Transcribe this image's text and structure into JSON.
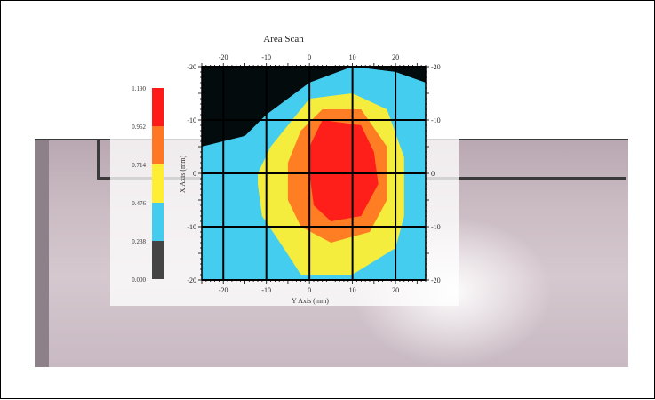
{
  "chart_data": {
    "type": "heatmap",
    "title": "Area Scan",
    "xlabel": "Y Axis (mm)",
    "ylabel": "X Axis (mm)",
    "x_ticks": [
      "-20",
      "-10",
      "0",
      "10",
      "20"
    ],
    "y_ticks": [
      "-20",
      "-10",
      "0",
      "-10",
      "-20"
    ],
    "xlim": [
      -25,
      27
    ],
    "ylim": [
      -20,
      20
    ],
    "grid": true,
    "colorbar": {
      "labels": [
        "1.190",
        "0.952",
        "0.714",
        "0.476",
        "0.238",
        "0.000"
      ],
      "colors": [
        "#ff1a1a",
        "#ff7722",
        "#ffee33",
        "#44ccee",
        "#444444"
      ]
    },
    "levels": [
      {
        "name": "0.000–0.238",
        "color": "#000000",
        "polygon": [
          [
            -25,
            20
          ],
          [
            0,
            20
          ],
          [
            27,
            20
          ],
          [
            27,
            17
          ],
          [
            20,
            19
          ],
          [
            10,
            20
          ],
          [
            0,
            17
          ],
          [
            -10,
            11
          ],
          [
            -15,
            7
          ],
          [
            -20,
            6
          ],
          [
            -25,
            5
          ]
        ]
      },
      {
        "name": "0.238–0.476",
        "color": "#44ccee",
        "polygon": [
          [
            -25,
            5
          ],
          [
            -20,
            6
          ],
          [
            -15,
            7
          ],
          [
            -10,
            11
          ],
          [
            0,
            17
          ],
          [
            10,
            20
          ],
          [
            20,
            19
          ],
          [
            27,
            17
          ],
          [
            27,
            -20
          ],
          [
            -25,
            -20
          ]
        ]
      },
      {
        "name": "0.476–0.714",
        "color": "#ffee33",
        "polygon": [
          [
            -12,
            0
          ],
          [
            -9,
            5
          ],
          [
            -5,
            9
          ],
          [
            0,
            14
          ],
          [
            10,
            15
          ],
          [
            18,
            12
          ],
          [
            22,
            3
          ],
          [
            22,
            -8
          ],
          [
            20,
            -14
          ],
          [
            10,
            -19
          ],
          [
            -2,
            -19
          ],
          [
            -6,
            -14
          ],
          [
            -11,
            -8
          ],
          [
            -12,
            -2
          ]
        ]
      },
      {
        "name": "0.714–0.952",
        "color": "#ff7722",
        "polygon": [
          [
            -5,
            2
          ],
          [
            -2,
            8
          ],
          [
            3,
            12
          ],
          [
            12,
            12
          ],
          [
            18,
            5
          ],
          [
            18,
            -5
          ],
          [
            14,
            -11
          ],
          [
            5,
            -13
          ],
          [
            -2,
            -10
          ],
          [
            -5,
            -5
          ]
        ]
      },
      {
        "name": "0.952–1.190",
        "color": "#ff1a1a",
        "polygon": [
          [
            0,
            5
          ],
          [
            3,
            10
          ],
          [
            12,
            9
          ],
          [
            15,
            4
          ],
          [
            16,
            -2
          ],
          [
            12,
            -8
          ],
          [
            5,
            -9
          ],
          [
            1,
            -6
          ],
          [
            0,
            0
          ]
        ]
      }
    ]
  }
}
